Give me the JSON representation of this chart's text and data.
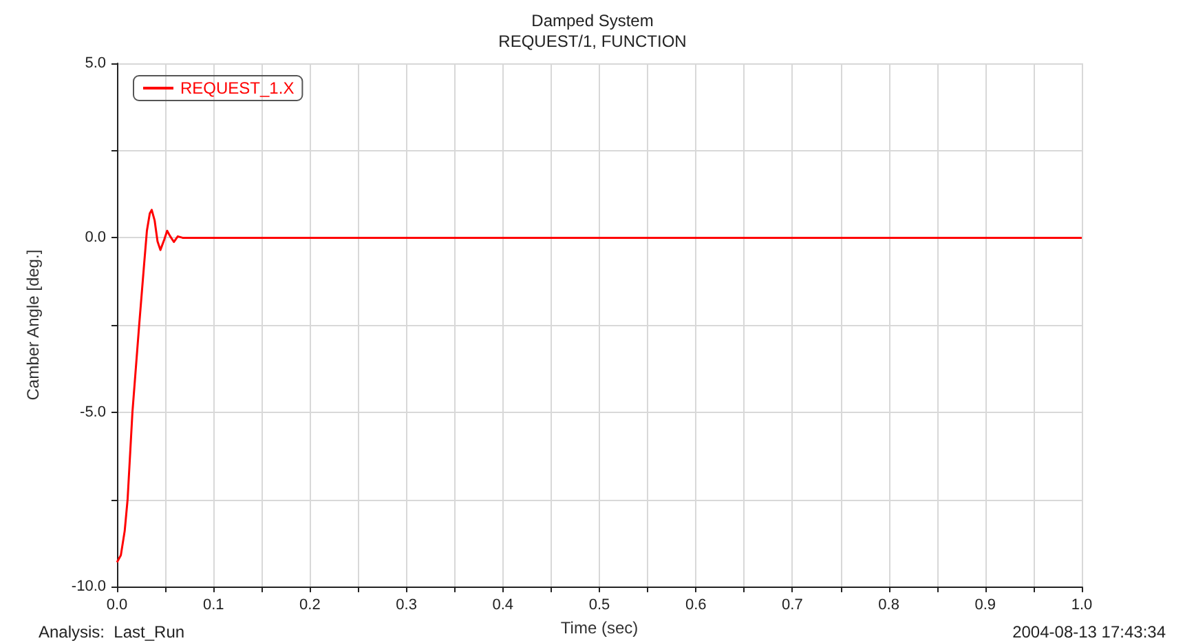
{
  "chart_data": {
    "type": "line",
    "title": "Damped System",
    "subtitle": "REQUEST/1, FUNCTION",
    "xlabel": "Time (sec)",
    "ylabel": "Camber Angle [deg.]",
    "series": [
      {
        "name": "REQUEST_1.X",
        "color": "#ff0000",
        "x": [
          0,
          0.004,
          0.008,
          0.011,
          0.016,
          0.023,
          0.028,
          0.031,
          0.034,
          0.036,
          0.039,
          0.042,
          0.045,
          0.049,
          0.052,
          0.055,
          0.059,
          0.063,
          0.068,
          0.1,
          0.2,
          0.5,
          1.0
        ],
        "values": [
          -9.3,
          -9.1,
          -8.4,
          -7.5,
          -5.0,
          -2.5,
          -0.8,
          0.2,
          0.7,
          0.8,
          0.5,
          -0.1,
          -0.35,
          -0.05,
          0.2,
          0.05,
          -0.12,
          0.04,
          0,
          0,
          0,
          0,
          0
        ]
      }
    ],
    "xlim": [
      0,
      1.0
    ],
    "xticks": [
      {
        "value": 0,
        "label": "0.0"
      },
      {
        "value": 0.05,
        "label": null
      },
      {
        "value": 0.1,
        "label": "0.1"
      },
      {
        "value": 0.15,
        "label": null
      },
      {
        "value": 0.2,
        "label": "0.2"
      },
      {
        "value": 0.25,
        "label": null
      },
      {
        "value": 0.3,
        "label": "0.3"
      },
      {
        "value": 0.35,
        "label": null
      },
      {
        "value": 0.4,
        "label": "0.4"
      },
      {
        "value": 0.45,
        "label": null
      },
      {
        "value": 0.5,
        "label": "0.5"
      },
      {
        "value": 0.55,
        "label": null
      },
      {
        "value": 0.6,
        "label": "0.6"
      },
      {
        "value": 0.65,
        "label": null
      },
      {
        "value": 0.7,
        "label": "0.7"
      },
      {
        "value": 0.75,
        "label": null
      },
      {
        "value": 0.8,
        "label": "0.8"
      },
      {
        "value": 0.85,
        "label": null
      },
      {
        "value": 0.9,
        "label": "0.9"
      },
      {
        "value": 0.95,
        "label": null
      },
      {
        "value": 1.0,
        "label": "1.0"
      }
    ],
    "ylim": [
      -10,
      5
    ],
    "yticks": [
      {
        "value": -10,
        "label": "-10.0"
      },
      {
        "value": -7.5,
        "label": null
      },
      {
        "value": -5,
        "label": "-5.0"
      },
      {
        "value": -2.5,
        "label": null
      },
      {
        "value": 0,
        "label": "0.0"
      },
      {
        "value": 2.5,
        "label": null
      },
      {
        "value": 5,
        "label": "5.0"
      }
    ],
    "grid": true,
    "legend": "top left",
    "marker": "none",
    "line_style": "solid",
    "annotations": [
      "Analysis:  Last_Run",
      "2004-08-13 17:43:34"
    ]
  }
}
